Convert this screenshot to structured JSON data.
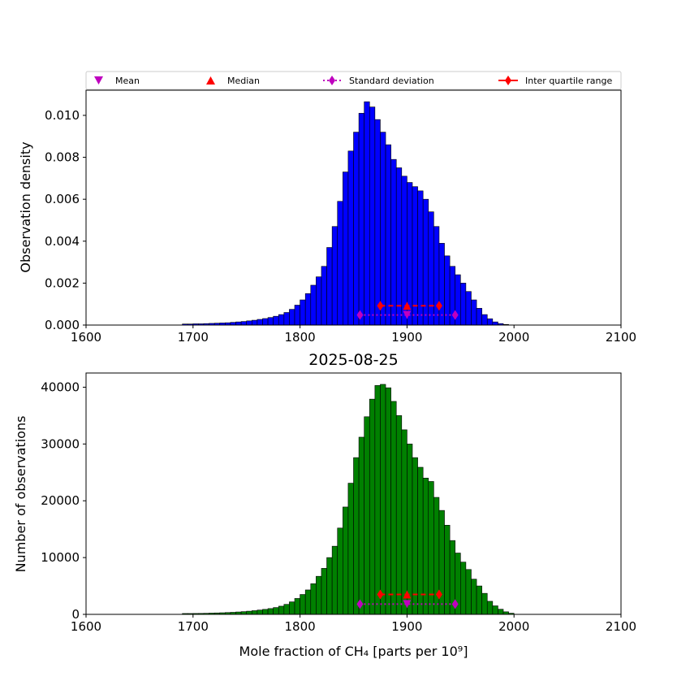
{
  "legend": {
    "placement": "top, above upper panel",
    "items": [
      {
        "label": "Mean",
        "marker": "triangle-down",
        "color": "#bf00bf",
        "line": "none"
      },
      {
        "label": "Median",
        "marker": "triangle-up",
        "color": "#ff0000",
        "line": "none"
      },
      {
        "label": "Standard deviation",
        "marker": "thin-diamond",
        "color": "#bf00bf",
        "line": "dotted"
      },
      {
        "label": "Inter quartile range",
        "marker": "thin-diamond",
        "color": "#ff0000",
        "line": "solid"
      }
    ]
  },
  "chart_data": [
    {
      "type": "bar",
      "title": "",
      "ylabel": "Observation density",
      "xlabel": "",
      "xlim": [
        1600,
        2100
      ],
      "ylim": [
        0,
        0.0112
      ],
      "xticks": [
        "1600",
        "1700",
        "1800",
        "1900",
        "2000",
        "2100"
      ],
      "yticks": [
        {
          "value": 0,
          "label": "0.000"
        },
        {
          "value": 0.002,
          "label": "0.002"
        },
        {
          "value": 0.004,
          "label": "0.004"
        },
        {
          "value": 0.006,
          "label": "0.006"
        },
        {
          "value": 0.008,
          "label": "0.008"
        },
        {
          "value": 0.01,
          "label": "0.010"
        }
      ],
      "color": "#0000ff",
      "bin_start": 1690,
      "bin_width": 5,
      "values": [
        5e-05,
        5e-05,
        6e-05,
        6e-05,
        7e-05,
        8e-05,
        9e-05,
        0.0001,
        0.00011,
        0.00013,
        0.00015,
        0.00017,
        0.0002,
        0.00023,
        0.00027,
        0.00031,
        0.00036,
        0.00042,
        0.0005,
        0.0006,
        0.00075,
        0.00095,
        0.0012,
        0.0015,
        0.0019,
        0.0023,
        0.0028,
        0.0037,
        0.0047,
        0.0059,
        0.0073,
        0.0083,
        0.0092,
        0.0101,
        0.01065,
        0.0104,
        0.0098,
        0.0092,
        0.0086,
        0.0079,
        0.0075,
        0.0071,
        0.0068,
        0.0066,
        0.0064,
        0.006,
        0.0054,
        0.0047,
        0.0039,
        0.0033,
        0.0028,
        0.0024,
        0.002,
        0.0016,
        0.0012,
        0.0008,
        0.0005,
        0.0003,
        0.00015,
        7e-05,
        3e-05
      ],
      "mean": 1900,
      "median": 1900,
      "std_range": [
        1856,
        1945
      ],
      "iqr_range": [
        1875,
        1930
      ],
      "mean_y": 0.00048,
      "median_y": 0.00092,
      "std_y": 0.00048,
      "iqr_y": 0.00092
    },
    {
      "type": "bar",
      "title": "2025-08-25",
      "ylabel": "Number of observations",
      "xlabel": "Mole fraction of CH₄ [parts per 10⁹]",
      "xlim": [
        1600,
        2100
      ],
      "ylim": [
        0,
        42500
      ],
      "xticks": [
        "1600",
        "1700",
        "1800",
        "1900",
        "2000",
        "2100"
      ],
      "yticks": [
        {
          "value": 0,
          "label": "0"
        },
        {
          "value": 10000,
          "label": "10000"
        },
        {
          "value": 20000,
          "label": "20000"
        },
        {
          "value": 30000,
          "label": "30000"
        },
        {
          "value": 40000,
          "label": "40000"
        }
      ],
      "color": "#008000",
      "bin_start": 1690,
      "bin_width": 5,
      "values": [
        150,
        150,
        160,
        170,
        190,
        220,
        250,
        280,
        320,
        360,
        420,
        480,
        560,
        650,
        760,
        880,
        1020,
        1200,
        1440,
        1760,
        2200,
        2800,
        3500,
        4300,
        5400,
        6700,
        8100,
        10000,
        12000,
        15200,
        18900,
        23100,
        27600,
        31200,
        34800,
        37900,
        40300,
        40500,
        39900,
        37500,
        35000,
        32500,
        30000,
        27600,
        25900,
        24000,
        23400,
        20600,
        18300,
        15700,
        13000,
        10800,
        9200,
        7900,
        6200,
        5000,
        3700,
        2300,
        1500,
        900,
        450,
        200
      ],
      "mean": 1900,
      "median": 1900,
      "std_range": [
        1856,
        1945
      ],
      "iqr_range": [
        1875,
        1930
      ],
      "mean_y": 1800,
      "median_y": 3500,
      "std_y": 1800,
      "iqr_y": 3500
    }
  ]
}
